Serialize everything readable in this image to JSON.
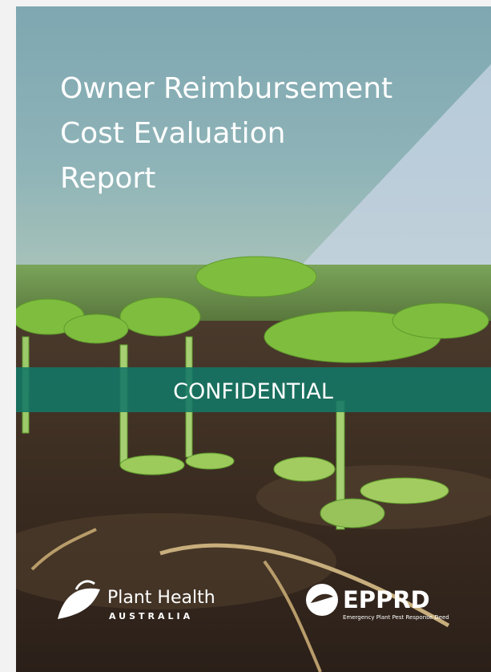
{
  "cover": {
    "title_lines": [
      "Owner Reimbursement",
      "Cost Evaluation",
      "Report"
    ],
    "banner": "CONFIDENTIAL",
    "logos": {
      "pha": {
        "name": "Plant Health",
        "country": "AUSTRALIA"
      },
      "epprd": {
        "name": "EPPRD",
        "subtitle": "Emergency Plant Pest Response Deed"
      }
    }
  }
}
